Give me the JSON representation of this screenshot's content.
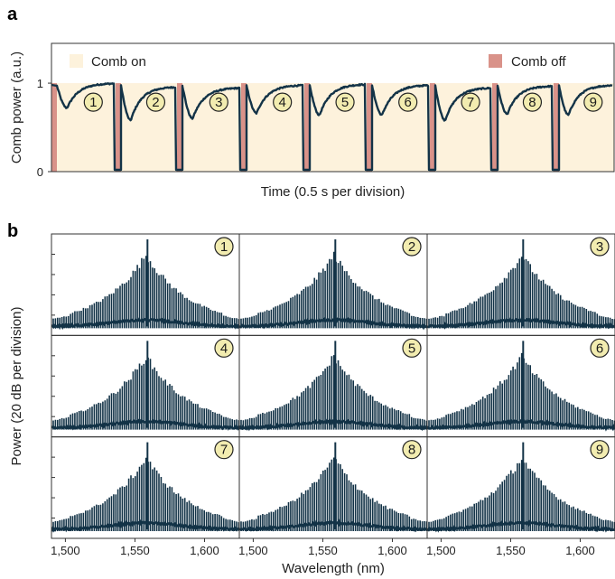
{
  "panels": {
    "a": "a",
    "b": "b"
  },
  "colors": {
    "trace": "#133347",
    "comb_on": "#fdf2dc",
    "comb_off": "#d99289",
    "badge_fill": "#f2ecb0",
    "axis": "#333333"
  },
  "chart_data": [
    {
      "id": "a",
      "type": "line",
      "xlabel": "Time (0.5 s per division)",
      "ylabel": "Comb power (a.u.)",
      "yticks": [
        {
          "value": 0,
          "label": "0"
        },
        {
          "value": 1,
          "label": "1"
        }
      ],
      "ylim": [
        0,
        1.45
      ],
      "legend": [
        {
          "label": "Comb on",
          "color": "#fdf2dc",
          "position": "top-left"
        },
        {
          "label": "Comb off",
          "color": "#d99289",
          "position": "top-right"
        }
      ],
      "cycles": [
        {
          "label": "1",
          "min_power": 0.72,
          "settled_power": 1.0
        },
        {
          "label": "2",
          "min_power": 0.58,
          "settled_power": 0.96
        },
        {
          "label": "3",
          "min_power": 0.6,
          "settled_power": 0.95
        },
        {
          "label": "4",
          "min_power": 0.66,
          "settled_power": 0.98
        },
        {
          "label": "5",
          "min_power": 0.64,
          "settled_power": 0.99
        },
        {
          "label": "6",
          "min_power": 0.64,
          "settled_power": 0.98
        },
        {
          "label": "7",
          "min_power": 0.58,
          "settled_power": 0.95
        },
        {
          "label": "8",
          "min_power": 0.65,
          "settled_power": 0.97
        },
        {
          "label": "9",
          "min_power": 0.64,
          "settled_power": 0.98
        }
      ]
    },
    {
      "id": "b",
      "type": "line",
      "xlabel": "Wavelength (nm)",
      "ylabel": "Power (20 dB per division)",
      "xlim": [
        1490,
        1625
      ],
      "xticks": [
        {
          "value": 1500,
          "label": "1,500"
        },
        {
          "value": 1550,
          "label": "1,550"
        },
        {
          "value": 1600,
          "label": "1,600"
        }
      ],
      "center_wavelength": 1558,
      "pump_wavelength": 1559,
      "grid": {
        "rows": 3,
        "cols": 3
      },
      "spectra": [
        {
          "label": "1"
        },
        {
          "label": "2"
        },
        {
          "label": "3"
        },
        {
          "label": "4"
        },
        {
          "label": "5"
        },
        {
          "label": "6"
        },
        {
          "label": "7"
        },
        {
          "label": "8"
        },
        {
          "label": "9"
        }
      ]
    }
  ]
}
